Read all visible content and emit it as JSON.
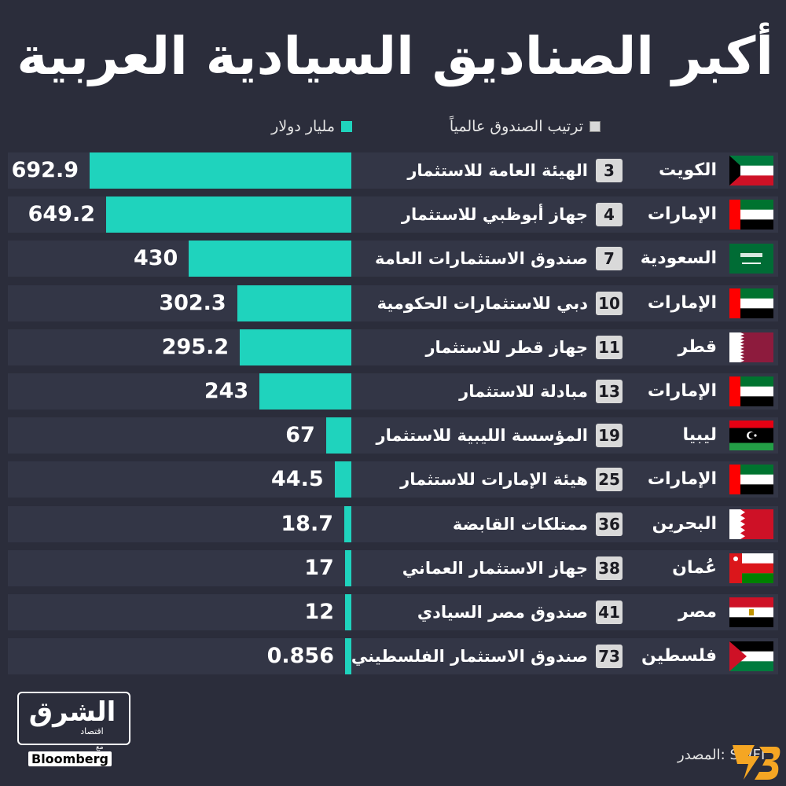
{
  "title": "أكبر الصناديق السيادية العربية",
  "legend": {
    "rank_label": "ترتيب الصندوق عالمياً",
    "value_label": "مليار دولار"
  },
  "source": "المصدر: SWFI",
  "logo": {
    "main": "الشرق",
    "sub": "اقتصاد",
    "with": "مع",
    "bloomberg": "Bloomberg"
  },
  "colors": {
    "bar": "#1fd3bd",
    "background": "#2b2d3b",
    "row": "#333646",
    "rank_badge": "#d9d9d9"
  },
  "chart_data": {
    "type": "bar",
    "orientation": "horizontal",
    "title": "أكبر الصناديق السيادية العربية",
    "unit": "مليار دولار",
    "categories": [
      "الهيئة العامة للاستثمار",
      "جهاز أبوظبي للاستثمار",
      "صندوق الاستثمارات العامة",
      "دبي للاستثمارات الحكومية",
      "جهاز قطر للاستثمار",
      "مبادلة للاستثمار",
      "المؤسسة الليبية للاستثمار",
      "هيئة الإمارات للاستثمار",
      "ممتلكات القابضة",
      "جهاز الاستثمار العماني",
      "صندوق مصر السيادي",
      "صندوق الاستثمار الفلسطيني"
    ],
    "values": [
      692.9,
      649.2,
      430,
      302.3,
      295.2,
      243,
      67,
      44.5,
      18.7,
      17,
      12,
      0.856
    ],
    "value_labels": [
      "692.9",
      "649.2",
      "430",
      "302.3",
      "295.2",
      "243",
      "67",
      "44.5",
      "18.7",
      "17",
      "12",
      "0.856"
    ],
    "ranks": [
      "3",
      "4",
      "7",
      "10",
      "11",
      "13",
      "19",
      "25",
      "36",
      "38",
      "41",
      "73"
    ],
    "countries": [
      "الكويت",
      "الإمارات",
      "السعودية",
      "الإمارات",
      "قطر",
      "الإمارات",
      "ليبيا",
      "الإمارات",
      "البحرين",
      "عُمان",
      "مصر",
      "فلسطين"
    ],
    "flags": [
      "kuwait-flag",
      "uae-flag",
      "saudi-flag",
      "uae-flag",
      "qatar-flag",
      "uae-flag",
      "libya-flag",
      "uae-flag",
      "bahrain-flag",
      "oman-flag",
      "egypt-flag",
      "palestine-flag"
    ],
    "xlim": [
      0,
      692.9
    ]
  }
}
